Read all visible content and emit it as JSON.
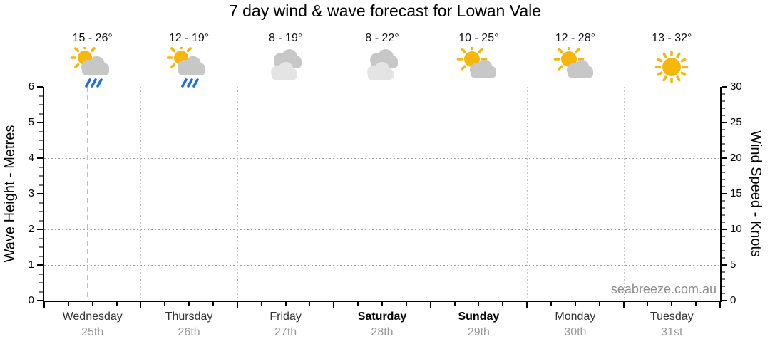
{
  "title": "7 day wind & wave forecast for Lowan Vale",
  "watermark": "seabreeze.com.au",
  "chart_data": {
    "type": "table",
    "days": [
      {
        "name": "Wednesday",
        "date": "25th",
        "temp": "15 - 26°",
        "icon": "sun-cloud-rain",
        "weekend": false
      },
      {
        "name": "Thursday",
        "date": "26th",
        "temp": "12 - 19°",
        "icon": "sun-cloud-rain",
        "weekend": false
      },
      {
        "name": "Friday",
        "date": "27th",
        "temp": "8 - 19°",
        "icon": "cloudy",
        "weekend": false
      },
      {
        "name": "Saturday",
        "date": "28th",
        "temp": "8 - 22°",
        "icon": "cloudy",
        "weekend": true
      },
      {
        "name": "Sunday",
        "date": "29th",
        "temp": "10 - 25°",
        "icon": "sun-cloud",
        "weekend": true
      },
      {
        "name": "Monday",
        "date": "30th",
        "temp": "12 - 28°",
        "icon": "sun-cloud",
        "weekend": false
      },
      {
        "name": "Tuesday",
        "date": "31st",
        "temp": "13 - 32°",
        "icon": "sunny",
        "weekend": false
      }
    ],
    "left_axis": {
      "label": "Wave Height - Metres",
      "ticks": [
        0,
        1,
        2,
        3,
        4,
        5,
        6
      ],
      "range": [
        0,
        6
      ]
    },
    "right_axis": {
      "label": "Wind Speed - Knots",
      "ticks": [
        0,
        5,
        10,
        15,
        20,
        25,
        30
      ],
      "range": [
        0,
        30
      ]
    },
    "series": [],
    "current_time_marker": {
      "day_index": 0,
      "time_fraction": 0.44
    },
    "colors": {
      "sun": "#F5B70D",
      "cloud": "#C7C7C7",
      "cloud_light": "#E4E4E4",
      "rain": "#1F6FDE",
      "marker": "#F7A6A6",
      "grid": "#9D9D9D",
      "day_grid": "#C2C2C2",
      "axis": "#000000",
      "date_text": "#999999",
      "watermark_text": "#8C8C8C"
    }
  }
}
